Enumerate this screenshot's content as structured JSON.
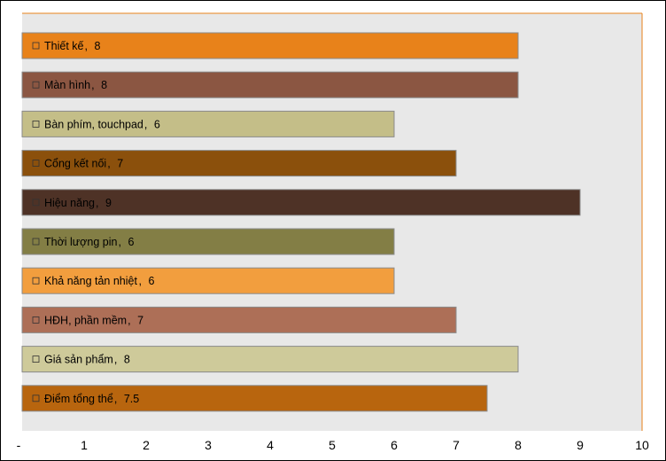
{
  "chart_data": {
    "type": "bar",
    "orientation": "horizontal",
    "categories": [
      "Thiết kế",
      "Màn hình",
      "Bàn phím, touchpad",
      "Cổng kết nối",
      "Hiệu năng",
      "Thời lượng pin",
      "Khả năng tản nhiệt",
      "HĐH, phần mềm",
      "Giá sản phẩm",
      "Điểm tổng thể"
    ],
    "values": [
      8,
      8,
      6,
      7,
      9,
      6,
      6,
      7,
      8,
      7.5
    ],
    "value_labels": [
      "8",
      "8",
      "6",
      "7",
      "9",
      "6",
      "6",
      "7",
      "8",
      "7.5"
    ],
    "bar_colors": [
      "#E8821A",
      "#8B5642",
      "#C4BE88",
      "#8B500C",
      "#4E3226",
      "#837E45",
      "#F29E3E",
      "#AD6F57",
      "#CECA9A",
      "#B8650E"
    ],
    "xlim": [
      0,
      10
    ],
    "x_ticks": [
      "-",
      "1",
      "2",
      "3",
      "4",
      "5",
      "6",
      "7",
      "8",
      "9",
      "10"
    ],
    "title": "",
    "xlabel": "",
    "ylabel": "",
    "grid": false,
    "legend": "none",
    "plot_background": "#E8E8E8",
    "plot_border_color": "#E8821A",
    "bar_outline_color": "#8A8A8A"
  }
}
